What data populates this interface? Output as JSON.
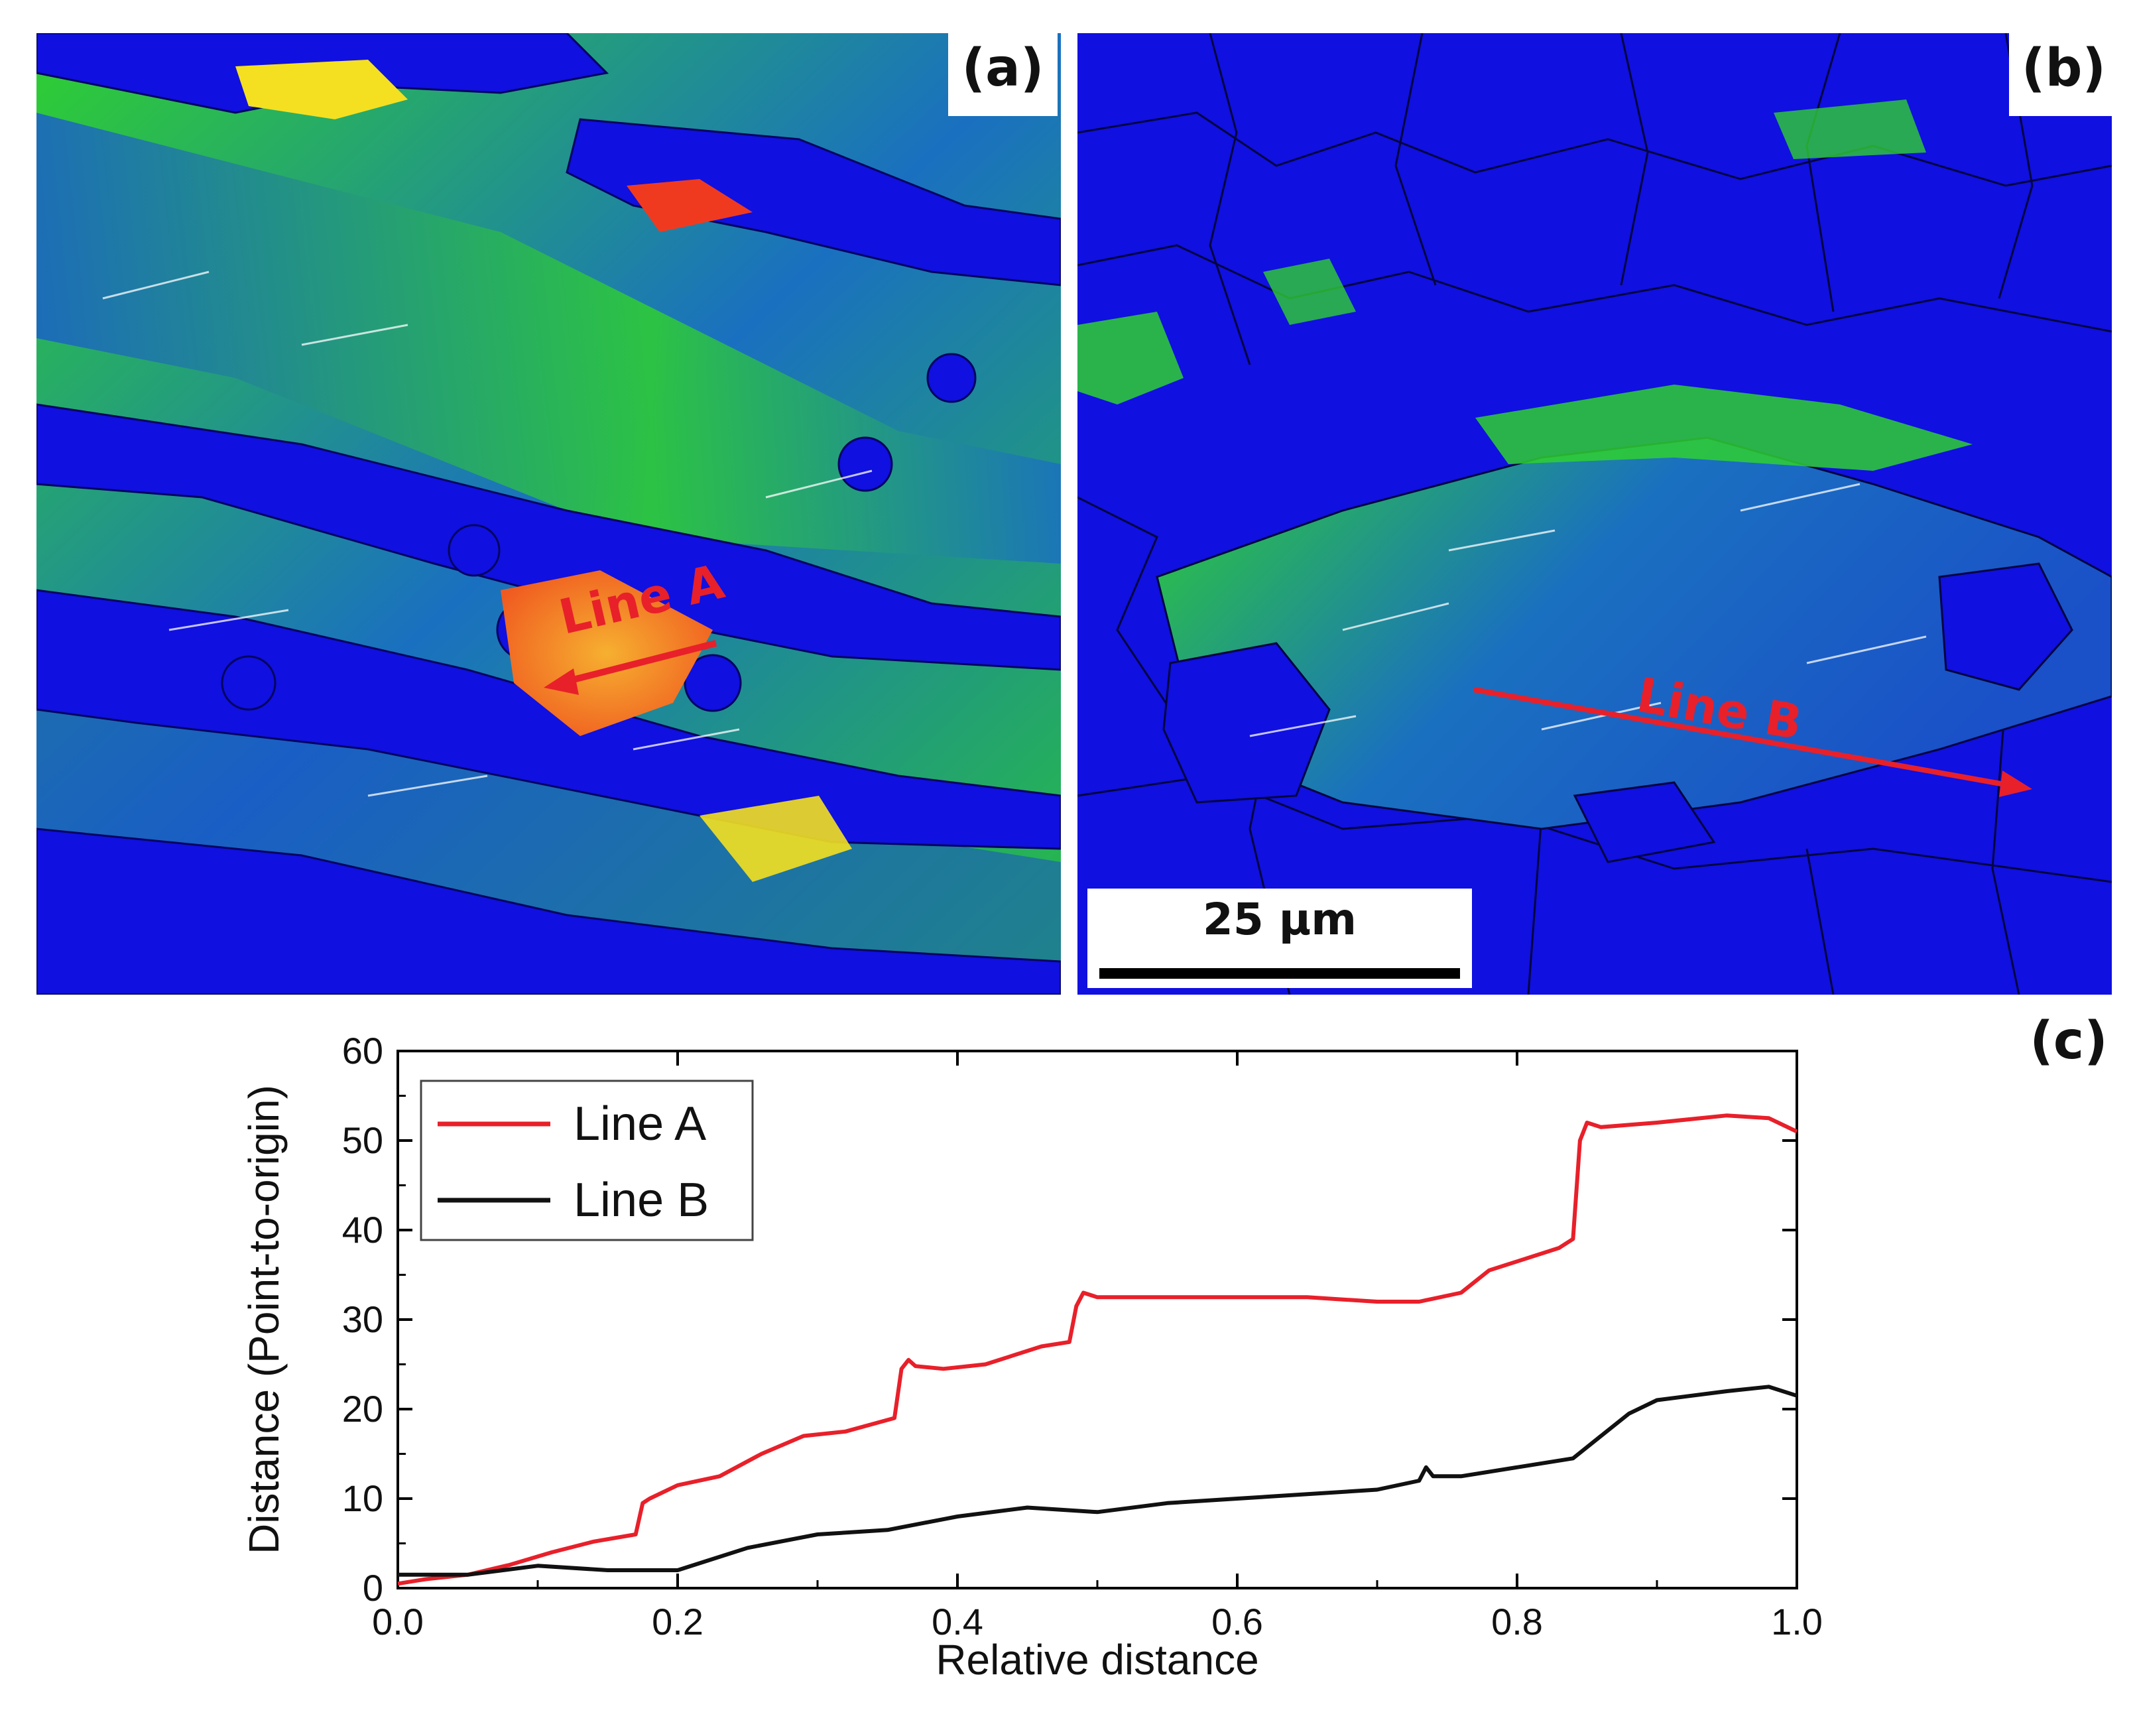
{
  "panels": {
    "a": {
      "label": "(a)",
      "line_label": "Line A"
    },
    "b": {
      "label": "(b)",
      "line_label": "Line B",
      "scale_bar": "25 µm"
    },
    "c": {
      "label": "(c)"
    }
  },
  "colors": {
    "line_a": "#e8202a",
    "line_b": "#111111",
    "recrystallized_grain": "#1010e0",
    "deformed_grain": "#2fd030",
    "high_misorientation": "#f4e020"
  },
  "chart_data": {
    "type": "line",
    "xlabel": "Relative distance",
    "ylabel": "Distance (Point-to-origin)",
    "xlim": [
      0.0,
      1.0
    ],
    "ylim": [
      0,
      60
    ],
    "xticks": [
      "0.0",
      "0.2",
      "0.4",
      "0.6",
      "0.8",
      "1.0"
    ],
    "yticks": [
      "0",
      "10",
      "20",
      "30",
      "40",
      "50",
      "60"
    ],
    "grid": false,
    "legend": "top-left",
    "series": [
      {
        "name": "Line A",
        "color": "#e8202a",
        "x": [
          0.0,
          0.02,
          0.05,
          0.08,
          0.11,
          0.14,
          0.17,
          0.175,
          0.18,
          0.2,
          0.23,
          0.26,
          0.29,
          0.32,
          0.355,
          0.36,
          0.365,
          0.37,
          0.39,
          0.42,
          0.46,
          0.48,
          0.485,
          0.49,
          0.5,
          0.55,
          0.6,
          0.65,
          0.7,
          0.73,
          0.76,
          0.78,
          0.8,
          0.83,
          0.84,
          0.845,
          0.85,
          0.86,
          0.9,
          0.95,
          0.98,
          1.0
        ],
        "y": [
          0.5,
          1.0,
          1.5,
          2.6,
          4.0,
          5.2,
          6.0,
          9.5,
          10.0,
          11.5,
          12.5,
          15.0,
          17.0,
          17.5,
          19.0,
          24.5,
          25.5,
          24.8,
          24.5,
          25.0,
          27.0,
          27.5,
          31.5,
          33.0,
          32.5,
          32.5,
          32.5,
          32.5,
          32.0,
          32.0,
          33.0,
          35.5,
          36.5,
          38.0,
          39.0,
          50.0,
          52.0,
          51.5,
          52.0,
          52.8,
          52.5,
          51.0
        ]
      },
      {
        "name": "Line B",
        "color": "#111111",
        "x": [
          0.0,
          0.05,
          0.1,
          0.15,
          0.2,
          0.22,
          0.25,
          0.3,
          0.35,
          0.4,
          0.45,
          0.5,
          0.55,
          0.6,
          0.65,
          0.7,
          0.73,
          0.735,
          0.74,
          0.76,
          0.8,
          0.84,
          0.86,
          0.88,
          0.9,
          0.95,
          0.98,
          1.0
        ],
        "y": [
          1.5,
          1.5,
          2.5,
          2.0,
          2.0,
          3.0,
          4.5,
          6.0,
          6.5,
          8.0,
          9.0,
          8.5,
          9.5,
          10.0,
          10.5,
          11.0,
          12.0,
          13.5,
          12.5,
          12.5,
          13.5,
          14.5,
          17.0,
          19.5,
          21.0,
          22.0,
          22.5,
          21.5
        ]
      }
    ]
  }
}
